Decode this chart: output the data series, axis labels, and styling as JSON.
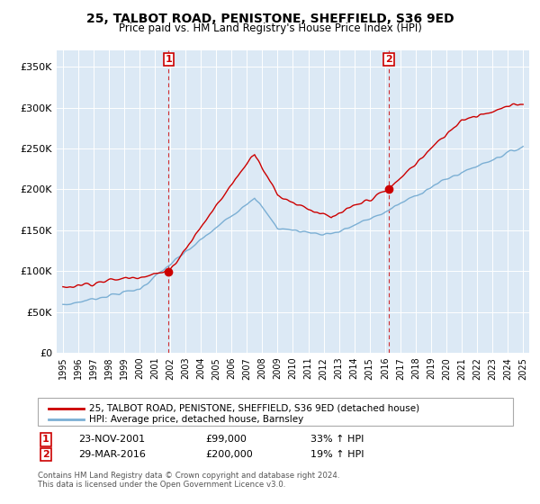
{
  "title": "25, TALBOT ROAD, PENISTONE, SHEFFIELD, S36 9ED",
  "subtitle": "Price paid vs. HM Land Registry's House Price Index (HPI)",
  "ylim": [
    0,
    370000
  ],
  "yticks": [
    0,
    50000,
    100000,
    150000,
    200000,
    250000,
    300000,
    350000
  ],
  "ytick_labels": [
    "£0",
    "£50K",
    "£100K",
    "£150K",
    "£200K",
    "£250K",
    "£300K",
    "£350K"
  ],
  "bg_color": "#dce9f5",
  "legend_entry1": "25, TALBOT ROAD, PENISTONE, SHEFFIELD, S36 9ED (detached house)",
  "legend_entry2": "HPI: Average price, detached house, Barnsley",
  "sale1_date": "23-NOV-2001",
  "sale1_price": 99000,
  "sale2_date": "29-MAR-2016",
  "sale2_price": 200000,
  "sale1_pct": "33% ↑ HPI",
  "sale2_pct": "19% ↑ HPI",
  "footer1": "Contains HM Land Registry data © Crown copyright and database right 2024.",
  "footer2": "This data is licensed under the Open Government Licence v3.0.",
  "line_color_red": "#cc0000",
  "line_color_blue": "#7bafd4",
  "sale1_x": 2001.9,
  "sale2_x": 2016.25
}
